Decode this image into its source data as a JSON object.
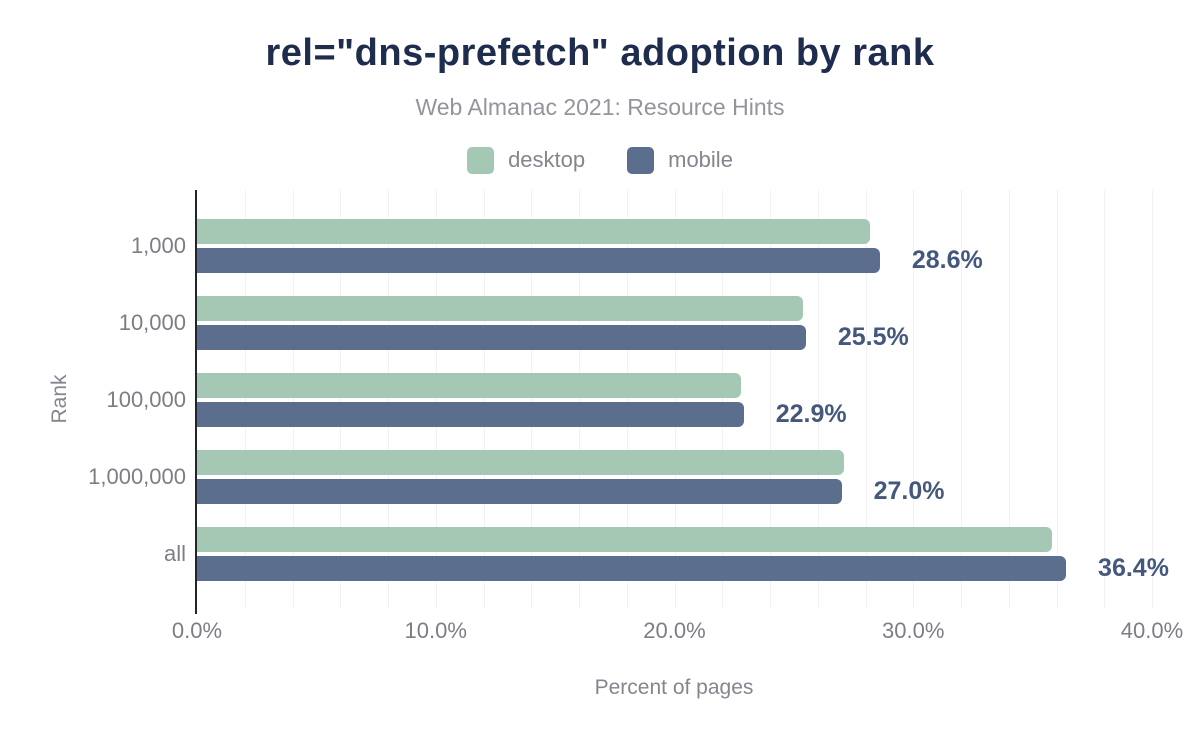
{
  "title": "rel=\"dns-prefetch\" adoption by rank",
  "subtitle": "Web Almanac 2021: Resource Hints",
  "legend": {
    "desktop_label": "desktop",
    "mobile_label": "mobile"
  },
  "colors": {
    "desktop_bar": "#a5c8b5",
    "mobile_bar": "#5b6e8e",
    "title_text": "#1e2c4e",
    "value_label_text": "#44587d",
    "axis_line": "#23252d",
    "gridline": "#f2f2f4",
    "muted_text": "#83868d"
  },
  "chart_data": {
    "type": "bar",
    "orientation": "horizontal",
    "title": "rel=\"dns-prefetch\" adoption by rank",
    "subtitle": "Web Almanac 2021: Resource Hints",
    "categories": [
      "1,000",
      "10,000",
      "100,000",
      "1,000,000",
      "all"
    ],
    "series": [
      {
        "name": "desktop",
        "color": "#a5c8b5",
        "values": [
          28.2,
          25.4,
          22.8,
          27.1,
          35.8
        ]
      },
      {
        "name": "mobile",
        "color": "#5b6e8e",
        "values": [
          28.6,
          25.5,
          22.9,
          27.0,
          36.4
        ]
      }
    ],
    "value_labels": [
      "28.6%",
      "25.5%",
      "22.9%",
      "27.0%",
      "36.4%"
    ],
    "value_labels_series": "mobile",
    "xlabel": "Percent of pages",
    "ylabel": "Rank",
    "xlim": [
      0,
      40
    ],
    "xticks": [
      0,
      10,
      20,
      30,
      40
    ],
    "xtick_labels": [
      "0.0%",
      "10.0%",
      "20.0%",
      "30.0%",
      "40.0%"
    ],
    "grid_step": 2,
    "grid": true,
    "legend_position": "top"
  }
}
